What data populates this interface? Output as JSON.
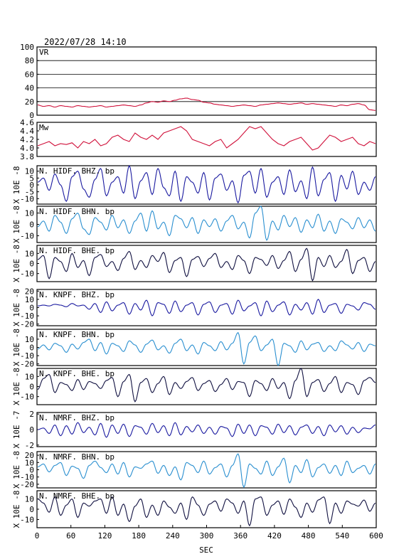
{
  "header": {
    "title": "2022/07/28  14:10"
  },
  "colors": {
    "vr": "#d0103a",
    "mw": "#d0103a",
    "bhz": "#1a1aa0",
    "bhn": "#2a8fd0",
    "bhe": "#101040",
    "grid": "#000000"
  },
  "chart_data": [
    {
      "type": "line",
      "title": "VR",
      "xlabel": "SEC",
      "ylabel": "",
      "xlim": [
        0,
        600
      ],
      "ylim": [
        0,
        100
      ],
      "yticks": [
        "100",
        "80",
        "60",
        "40",
        "20",
        "0"
      ],
      "grid": true,
      "series": [
        {
          "values": [
            15,
            13,
            14,
            12,
            14,
            13,
            12,
            14,
            13,
            12,
            13,
            14,
            12,
            13,
            14,
            15,
            14,
            13,
            15,
            18,
            20,
            19,
            21,
            20,
            22,
            24,
            25,
            23,
            22,
            19,
            18,
            16,
            15,
            14,
            13,
            14,
            15,
            14,
            13,
            15,
            16,
            17,
            18,
            17,
            16,
            17,
            18,
            16,
            17,
            16,
            15,
            14,
            13,
            15,
            14,
            16,
            17,
            15,
            8,
            7
          ]
        }
      ]
    },
    {
      "type": "line",
      "title": "Mw",
      "xlim": [
        0,
        600
      ],
      "ylim": [
        3.8,
        4.6
      ],
      "yticks": [
        "4.6",
        "4.4",
        "4.2",
        "4.0",
        "3.8"
      ],
      "series": [
        {
          "values": [
            4.05,
            4.1,
            4.15,
            4.05,
            4.1,
            4.08,
            4.12,
            4.0,
            4.15,
            4.1,
            4.2,
            4.05,
            4.1,
            4.25,
            4.3,
            4.2,
            4.15,
            4.35,
            4.25,
            4.2,
            4.3,
            4.2,
            4.35,
            4.4,
            4.45,
            4.5,
            4.4,
            4.2,
            4.15,
            4.1,
            4.05,
            4.15,
            4.2,
            4.0,
            4.1,
            4.2,
            4.35,
            4.5,
            4.45,
            4.5,
            4.35,
            4.2,
            4.1,
            4.05,
            4.15,
            4.2,
            4.25,
            4.1,
            3.95,
            4.0,
            4.15,
            4.3,
            4.25,
            4.15,
            4.2,
            4.25,
            4.1,
            4.05,
            4.15,
            4.1
          ]
        }
      ]
    },
    {
      "type": "line",
      "title": "N. HIDF. BHZ. bp",
      "ylabel": "X 10E -8",
      "xlim": [
        0,
        600
      ],
      "ylim": [
        -14,
        14
      ],
      "yticks": [
        "10",
        "5",
        "0",
        "-5",
        "-10"
      ],
      "series": [
        {
          "values": [
            2,
            5,
            -4,
            8,
            0,
            -12,
            6,
            10,
            -3,
            -9,
            4,
            12,
            -8,
            2,
            6,
            -6,
            14,
            -10,
            3,
            9,
            -7,
            12,
            -2,
            -8,
            10,
            -12,
            6,
            2,
            -6,
            9,
            -11,
            5,
            8,
            -4,
            3,
            -13,
            7,
            10,
            -6,
            12,
            -9,
            2,
            6,
            -7,
            11,
            -5,
            3,
            -10,
            13,
            -8,
            4,
            9,
            -12,
            7,
            -3,
            10,
            -7,
            2,
            -4,
            6
          ]
        }
      ]
    },
    {
      "type": "line",
      "title": "N. HIDF. BHN. bp",
      "ylabel": "X 10E -8",
      "xlim": [
        0,
        600
      ],
      "ylim": [
        -16,
        16
      ],
      "yticks": [
        "10",
        "0",
        "-10"
      ],
      "series": [
        {
          "values": [
            -2,
            3,
            -6,
            8,
            2,
            -8,
            5,
            10,
            -4,
            -9,
            6,
            2,
            -5,
            8,
            -3,
            4,
            -8,
            3,
            10,
            -6,
            12,
            -4,
            2,
            -10,
            8,
            5,
            -3,
            6,
            -8,
            4,
            -2,
            5,
            -6,
            3,
            8,
            -4,
            2,
            -12,
            10,
            16,
            -14,
            3,
            -5,
            8,
            -2,
            6,
            -7,
            4,
            -3,
            9,
            -6,
            3,
            -8,
            5,
            2,
            -4,
            6,
            -3,
            4,
            -6
          ]
        }
      ]
    },
    {
      "type": "line",
      "title": "N. HIDF. BHE. bp",
      "ylabel": "X 10E -8",
      "xlim": [
        0,
        600
      ],
      "ylim": [
        -18,
        18
      ],
      "yticks": [
        "10",
        "0",
        "-10"
      ],
      "series": [
        {
          "values": [
            4,
            8,
            -15,
            6,
            2,
            -8,
            10,
            -4,
            3,
            -12,
            6,
            9,
            -3,
            2,
            -7,
            5,
            12,
            -6,
            3,
            -4,
            8,
            2,
            11,
            -9,
            3,
            6,
            -13,
            4,
            7,
            -3,
            5,
            10,
            -4,
            2,
            -6,
            8,
            3,
            -10,
            6,
            4,
            -2,
            8,
            -5,
            3,
            12,
            -8,
            4,
            15,
            -17,
            6,
            -3,
            8,
            -4,
            2,
            14,
            -10,
            3,
            6,
            -8,
            2
          ]
        }
      ]
    },
    {
      "type": "line",
      "title": "N. KNPF. BHZ. bp",
      "ylabel": "X 10E -8",
      "xlim": [
        0,
        600
      ],
      "ylim": [
        -22,
        22
      ],
      "yticks": [
        "20",
        "10",
        "0",
        "-10",
        "-20"
      ],
      "series": [
        {
          "values": [
            2,
            3,
            2,
            4,
            3,
            1,
            5,
            2,
            3,
            -2,
            5,
            -6,
            7,
            -4,
            3,
            6,
            -8,
            5,
            -3,
            9,
            -10,
            6,
            4,
            -7,
            8,
            -5,
            3,
            6,
            -9,
            4,
            7,
            -6,
            3,
            5,
            -8,
            9,
            -4,
            2,
            6,
            -10,
            8,
            -5,
            3,
            7,
            -9,
            4,
            -3,
            6,
            -8,
            10,
            -6,
            3,
            5,
            -7,
            4,
            2,
            -3,
            6,
            4,
            -2
          ]
        }
      ]
    },
    {
      "type": "line",
      "title": "N. KNPF. BHN. bp",
      "ylabel": "X 10E -8",
      "xlim": [
        0,
        600
      ],
      "ylim": [
        -22,
        22
      ],
      "yticks": [
        "10",
        "0",
        "-10",
        "-20"
      ],
      "series": [
        {
          "values": [
            -2,
            3,
            -3,
            5,
            2,
            -6,
            4,
            -2,
            6,
            10,
            -4,
            6,
            -8,
            5,
            2,
            -5,
            8,
            3,
            -6,
            4,
            9,
            -3,
            2,
            -7,
            5,
            10,
            -4,
            3,
            -8,
            6,
            2,
            -4,
            7,
            -3,
            5,
            18,
            -20,
            6,
            14,
            -4,
            3,
            10,
            -22,
            5,
            2,
            -6,
            8,
            -3,
            4,
            6,
            -5,
            2,
            -4,
            8,
            3,
            -2,
            6,
            -5,
            4,
            2
          ]
        }
      ]
    },
    {
      "type": "line",
      "title": "N. KNPF. BHE. bp",
      "ylabel": "X 10E -8",
      "xlim": [
        0,
        600
      ],
      "ylim": [
        -18,
        18
      ],
      "yticks": [
        "10",
        "0",
        "-10"
      ],
      "series": [
        {
          "values": [
            -3,
            8,
            12,
            -6,
            4,
            2,
            -4,
            7,
            -3,
            5,
            3,
            -2,
            6,
            9,
            -10,
            5,
            12,
            -15,
            4,
            8,
            -6,
            3,
            10,
            -8,
            4,
            -2,
            5,
            9,
            -4,
            3,
            6,
            -5,
            2,
            8,
            -3,
            5,
            4,
            -10,
            6,
            3,
            -4,
            8,
            -2,
            4,
            -12,
            6,
            18,
            -10,
            4,
            7,
            -5,
            3,
            10,
            -6,
            4,
            2,
            -8,
            6,
            9,
            4
          ]
        }
      ]
    },
    {
      "type": "line",
      "title": "N. NMRF. BHZ. bp",
      "ylabel": "X 10E -7",
      "xlim": [
        0,
        600
      ],
      "ylim": [
        -2.2,
        2.2
      ],
      "yticks": [
        "2",
        "0",
        "-2"
      ],
      "series": [
        {
          "values": [
            0,
            0.2,
            -0.5,
            0.6,
            -0.8,
            0.5,
            -0.6,
            0.9,
            -0.4,
            0.3,
            -0.7,
            0.8,
            -1.0,
            0.6,
            -0.5,
            0.7,
            -0.9,
            0.5,
            0.3,
            -0.6,
            0.8,
            -0.4,
            0.5,
            -0.8,
            0.9,
            -0.7,
            0.4,
            -0.3,
            0.6,
            -0.5,
            0.3,
            -0.6,
            0.4,
            0.2,
            -0.9,
            0.7,
            -0.5,
            0.6,
            -0.8,
            0.5,
            0.3,
            -0.6,
            0.7,
            -0.4,
            0.5,
            -0.7,
            0.3,
            0.6,
            -0.5,
            0.4,
            -0.8,
            0.6,
            -0.3,
            0.5,
            -0.6,
            0.3,
            -0.4,
            0.2,
            0.1,
            0.6
          ]
        }
      ]
    },
    {
      "type": "line",
      "title": "N. NMRF. BHN. bp",
      "ylabel": "X 10E -8",
      "xlim": [
        0,
        600
      ],
      "ylim": [
        -25,
        25
      ],
      "yticks": [
        "20",
        "10",
        "0",
        "-10",
        "-20"
      ],
      "series": [
        {
          "values": [
            4,
            8,
            -3,
            6,
            10,
            -8,
            5,
            2,
            -12,
            6,
            12,
            3,
            -4,
            8,
            -6,
            10,
            -10,
            4,
            2,
            8,
            12,
            -5,
            6,
            -8,
            4,
            -14,
            10,
            6,
            -4,
            12,
            -6,
            3,
            8,
            -10,
            6,
            22,
            -24,
            8,
            2,
            -6,
            12,
            -8,
            4,
            16,
            -18,
            6,
            -4,
            14,
            -10,
            3,
            8,
            -5,
            6,
            -8,
            12,
            -4,
            2,
            6,
            -6,
            8
          ]
        }
      ]
    },
    {
      "type": "line",
      "title": "N. NMRF. BHE. bp",
      "ylabel": "X 10E -8",
      "xlim": [
        0,
        600
      ],
      "ylim": [
        -18,
        18
      ],
      "yticks": [
        "10",
        "0",
        "-10"
      ],
      "series": [
        {
          "values": [
            10,
            6,
            -3,
            12,
            -6,
            4,
            10,
            -8,
            6,
            3,
            8,
            10,
            -4,
            12,
            -6,
            5,
            -12,
            3,
            10,
            -8,
            4,
            -6,
            8,
            2,
            -4,
            6,
            -10,
            12,
            4,
            -6,
            5,
            8,
            -2,
            10,
            6,
            -4,
            8,
            -16,
            10,
            12,
            -6,
            4,
            8,
            -5,
            10,
            2,
            -8,
            6,
            -3,
            9,
            12,
            -14,
            6,
            -4,
            8,
            5,
            3,
            9,
            -2,
            6
          ]
        }
      ]
    }
  ],
  "x_axis": {
    "ticks": [
      "0",
      "60",
      "120",
      "180",
      "240",
      "300",
      "360",
      "420",
      "480",
      "540",
      "600"
    ],
    "label": "SEC"
  }
}
